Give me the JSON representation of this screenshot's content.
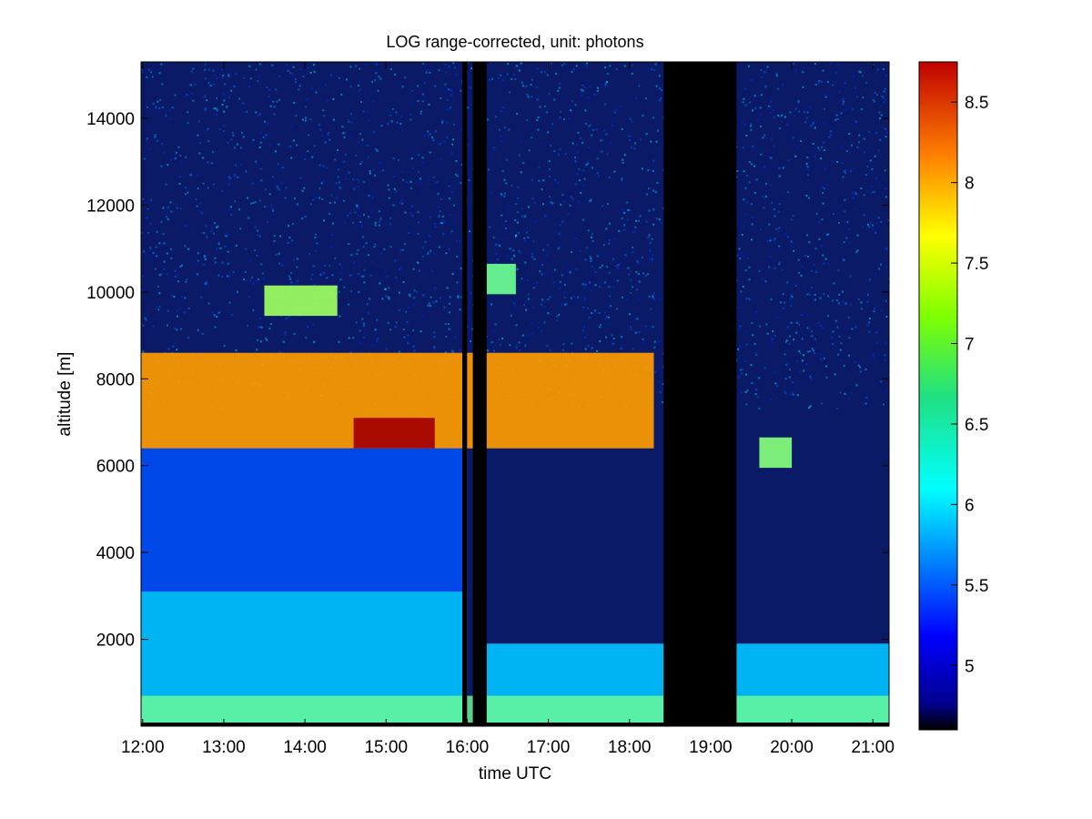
{
  "chart_data": {
    "type": "heatmap",
    "title": "LOG range-corrected, unit: photons",
    "xlabel": "time UTC",
    "ylabel": "altitude [m]",
    "x_ticks": [
      "12:00",
      "13:00",
      "14:00",
      "15:00",
      "16:00",
      "17:00",
      "18:00",
      "19:00",
      "20:00",
      "21:00"
    ],
    "x_tick_hours": [
      12,
      13,
      14,
      15,
      16,
      17,
      18,
      19,
      20,
      21
    ],
    "xlim_hours": [
      11.98,
      21.2
    ],
    "y_ticks": [
      "2000",
      "4000",
      "6000",
      "8000",
      "10000",
      "12000",
      "14000"
    ],
    "y_tick_values": [
      2000,
      4000,
      6000,
      8000,
      10000,
      12000,
      14000
    ],
    "ylim": [
      0,
      15300
    ],
    "colorbar": {
      "ticks": [
        "5",
        "5.5",
        "6",
        "6.5",
        "7",
        "7.5",
        "8",
        "8.5"
      ],
      "tick_values": [
        5,
        5.5,
        6,
        6.5,
        7,
        7.5,
        8,
        8.5
      ],
      "range": [
        4.6,
        8.75
      ],
      "colormap": "jet"
    },
    "no_data_intervals_hours": [
      [
        15.94,
        16.0
      ],
      [
        16.07,
        16.24
      ],
      [
        18.42,
        19.32
      ]
    ],
    "features": [
      {
        "name": "boundary layer",
        "start_h": 11.98,
        "end_h": 16.0,
        "altitude_top_m": 3100,
        "value": 5.9
      },
      {
        "name": "boundary layer",
        "start_h": 16.24,
        "end_h": 21.2,
        "altitude_top_m": 1900,
        "value": 5.9
      },
      {
        "name": "cirrus layer",
        "start_h": 11.98,
        "end_h": 18.3,
        "altitude_bottom_m": 6400,
        "altitude_top_m": 8600,
        "value": 7.6
      },
      {
        "name": "cirrus peak",
        "start_h": 14.6,
        "end_h": 15.6,
        "altitude_m": 6750,
        "value": 8.6
      },
      {
        "name": "cirrus layer",
        "start_h": 19.6,
        "end_h": 20.0,
        "altitude_m": 6300,
        "value": 6.7
      },
      {
        "name": "high cloud",
        "start_h": 13.5,
        "end_h": 14.4,
        "altitude_m": 9800,
        "value": 6.8
      },
      {
        "name": "high cloud",
        "start_h": 16.24,
        "end_h": 16.6,
        "altitude_m": 10300,
        "value": 6.6
      }
    ]
  }
}
